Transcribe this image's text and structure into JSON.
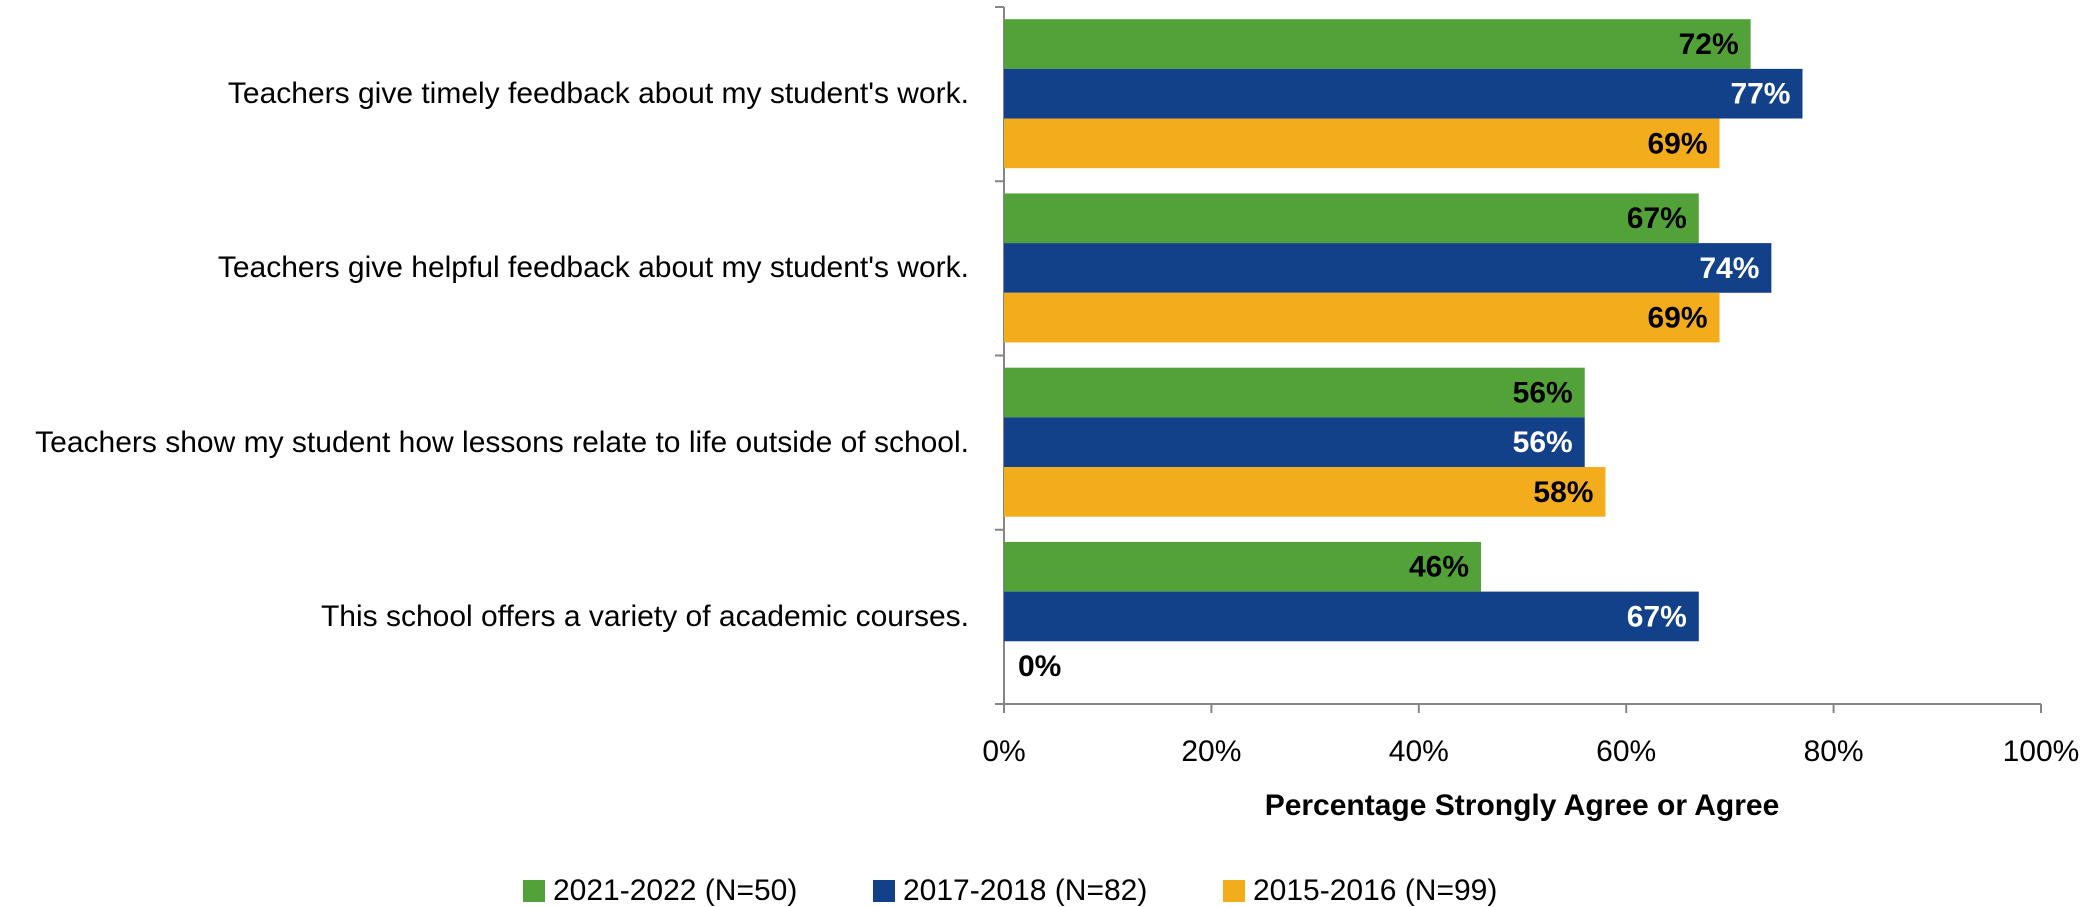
{
  "chart_data": {
    "type": "hbar",
    "categories": [
      "Teachers give timely feedback about my student's work.",
      "Teachers give helpful feedback about my student's work.",
      "Teachers show my student how lessons relate to life outside of school.",
      "This school offers a variety of academic courses."
    ],
    "series": [
      {
        "name": "2021-2022 (N=50)",
        "color": "#52a239",
        "label_color": "#000000",
        "values": [
          72,
          67,
          56,
          46
        ],
        "value_labels": [
          "72%",
          "67%",
          "56%",
          "46%"
        ]
      },
      {
        "name": "2017-2018 (N=82)",
        "color": "#12418a",
        "label_color": "#ffffff",
        "values": [
          77,
          74,
          56,
          67
        ],
        "value_labels": [
          "77%",
          "74%",
          "56%",
          "67%"
        ]
      },
      {
        "name": "2015-2016 (N=99)",
        "color": "#f2ac1c",
        "label_color": "#000000",
        "values": [
          69,
          69,
          58,
          0
        ],
        "value_labels": [
          "69%",
          "69%",
          "58%",
          "0%"
        ]
      }
    ],
    "xlabel": "Percentage Strongly Agree or Agree",
    "xlim": [
      0,
      100
    ],
    "xticks": [
      {
        "value": 0,
        "label": "0%"
      },
      {
        "value": 20,
        "label": "20%"
      },
      {
        "value": 40,
        "label": "40%"
      },
      {
        "value": 60,
        "label": "60%"
      },
      {
        "value": 80,
        "label": "80%"
      },
      {
        "value": 100,
        "label": "100%"
      }
    ],
    "grid": false,
    "legend": "bottom"
  }
}
